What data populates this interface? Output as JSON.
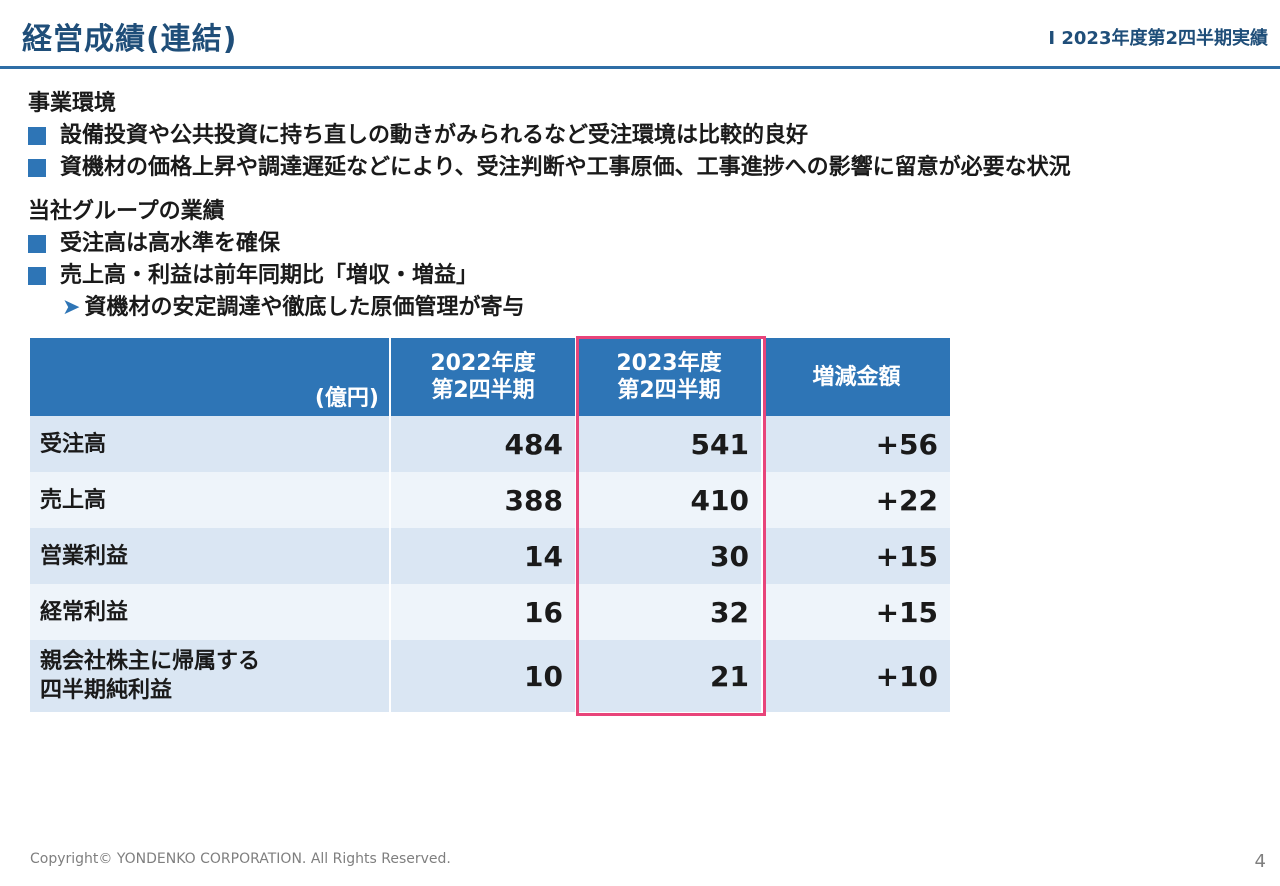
{
  "header": {
    "title": "経営成績(連結)",
    "section": "Ⅰ 2023年度第2四半期実績"
  },
  "business_env": {
    "heading": "事業環境",
    "bullets": [
      "設備投資や公共投資に持ち直しの動きがみられるなど受注環境は比較的良好",
      "資機材の価格上昇や調達遅延などにより、受注判断や工事原価、工事進捗への影響に留意が必要な状況"
    ]
  },
  "group_results": {
    "heading": "当社グループの業績",
    "bullets": [
      "受注高は高水準を確保",
      "売上高・利益は前年同期比「増収・増益」"
    ],
    "sub_arrow": "➤",
    "sub": "資機材の安定調達や徹底した原価管理が寄与"
  },
  "table": {
    "unit": "(億円)",
    "columns": [
      {
        "line1": "2022年度",
        "line2": "第2四半期"
      },
      {
        "line1": "2023年度",
        "line2": "第2四半期"
      },
      {
        "line1": "増減金額",
        "line2": ""
      }
    ],
    "rows": [
      {
        "label": "受注高",
        "label2": "",
        "v2022": "484",
        "v2023": "541",
        "diff": "+56"
      },
      {
        "label": "売上高",
        "label2": "",
        "v2022": "388",
        "v2023": "410",
        "diff": "+22"
      },
      {
        "label": "営業利益",
        "label2": "",
        "v2022": "14",
        "v2023": "30",
        "diff": "+15"
      },
      {
        "label": "経常利益",
        "label2": "",
        "v2022": "16",
        "v2023": "32",
        "diff": "+15"
      },
      {
        "label": "親会社株主に帰属する",
        "label2": "四半期純利益",
        "v2022": "10",
        "v2023": "21",
        "diff": "+10"
      }
    ],
    "highlight_color": "#e8447a"
  },
  "footer": {
    "copyright": "Copyright© YONDENKO CORPORATION. All Rights Reserved.",
    "page": "4"
  },
  "colors": {
    "title": "#1f4e79",
    "header_fill": "#2e75b6",
    "row_dark": "#dae6f3",
    "row_light": "#eef4fa"
  }
}
